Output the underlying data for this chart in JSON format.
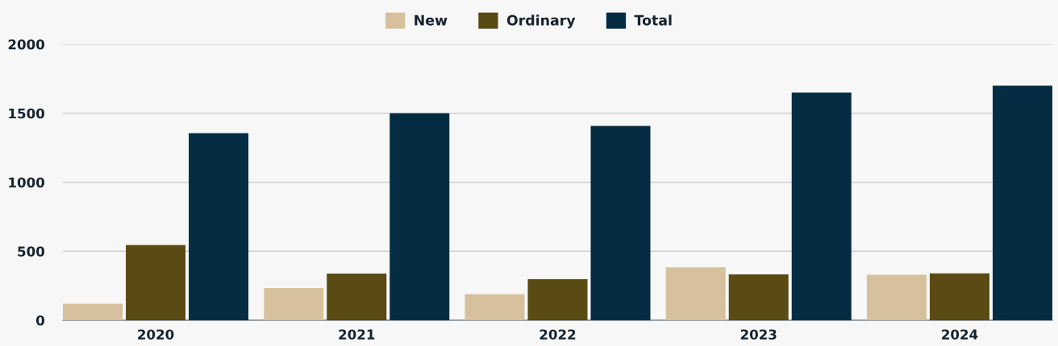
{
  "chart_data": {
    "type": "bar",
    "categories": [
      "2020",
      "2021",
      "2022",
      "2023",
      "2024"
    ],
    "series": [
      {
        "name": "New",
        "color": "#d6c19c",
        "values": [
          120,
          233,
          190,
          383,
          330
        ]
      },
      {
        "name": "Ordinary",
        "color": "#5a4a13",
        "values": [
          545,
          338,
          297,
          332,
          340
        ]
      },
      {
        "name": "Total",
        "color": "#042d43",
        "values": [
          1355,
          1500,
          1408,
          1650,
          1700
        ]
      }
    ],
    "ylim": [
      0,
      2000
    ],
    "yticks": [
      0,
      500,
      1000,
      1500,
      2000
    ],
    "grid": "y",
    "legend": "top"
  }
}
